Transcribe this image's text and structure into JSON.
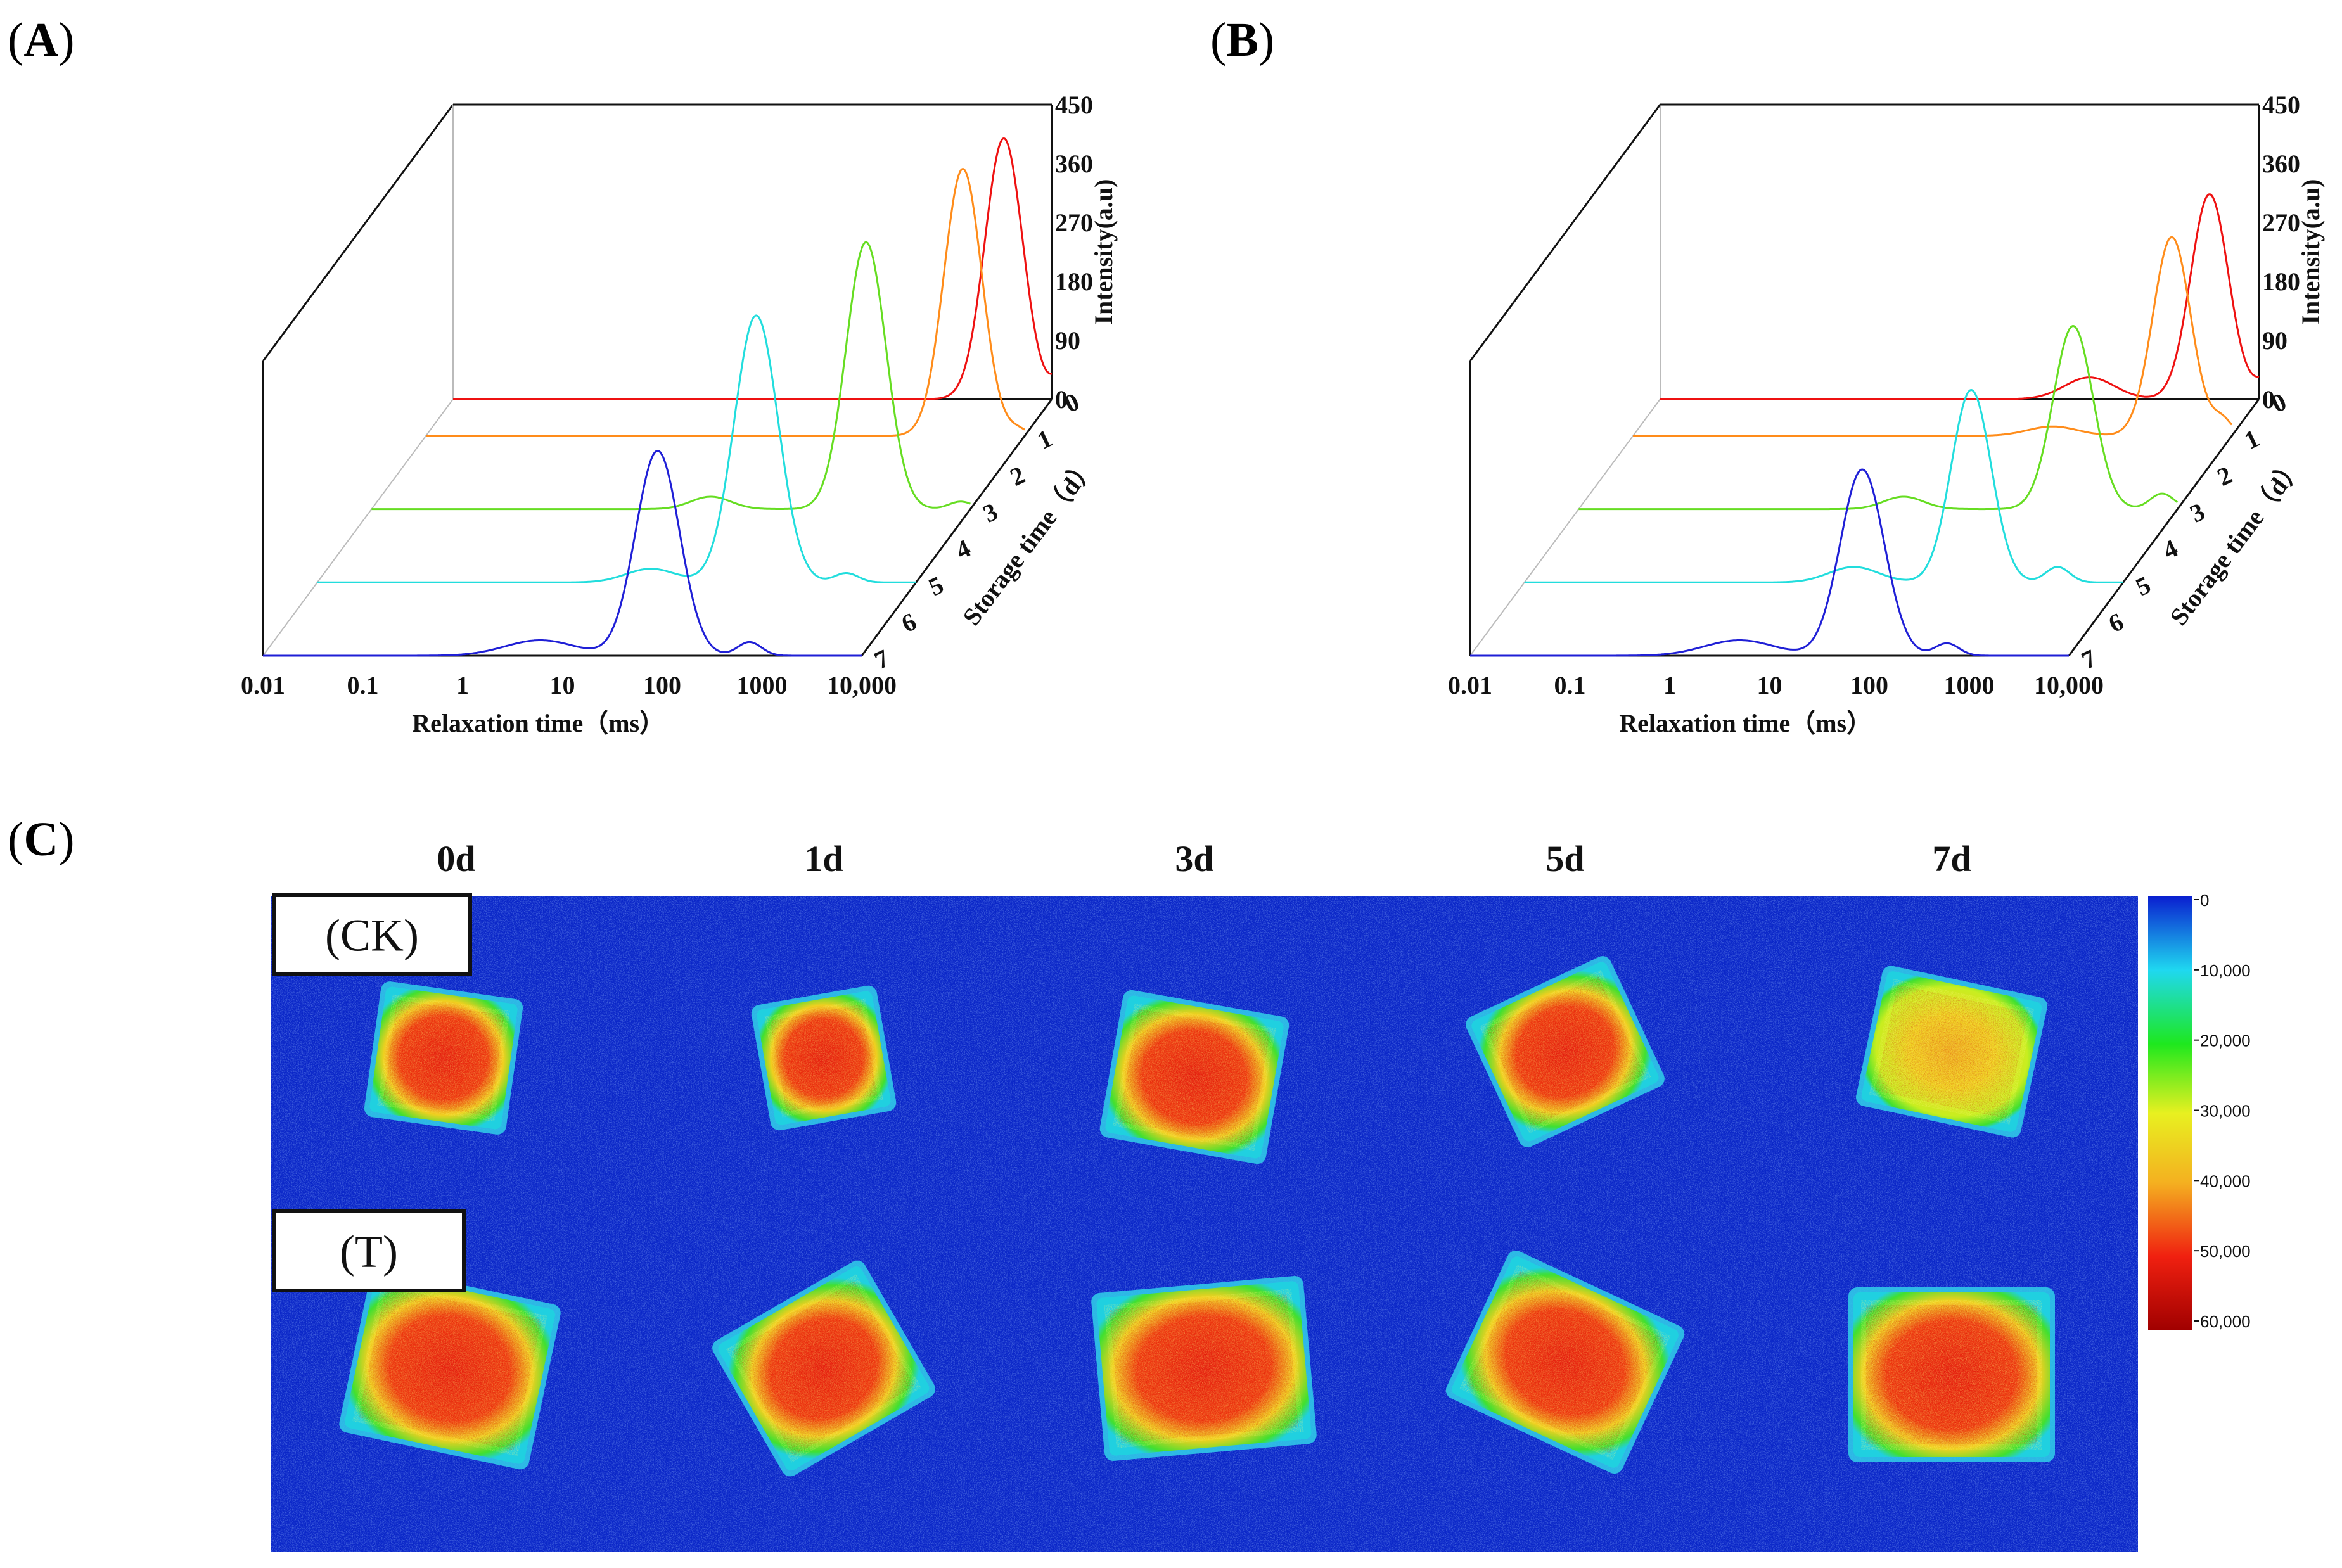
{
  "panels": {
    "A": {
      "letter": "A"
    },
    "B": {
      "letter": "B"
    },
    "C": {
      "letter": "C"
    }
  },
  "chart_data": [
    {
      "type": "line",
      "panel": "A",
      "xlabel": "Relaxation time（ms）",
      "x_scale": "log",
      "x_ticks": [
        "0.01",
        "0.1",
        "1",
        "10",
        "100",
        "1000",
        "10,000"
      ],
      "ylabel": "Intensity(a.u)",
      "ylim": [
        0,
        450
      ],
      "y_ticks": [
        "0",
        "90",
        "180",
        "270",
        "360",
        "450"
      ],
      "zlabel": "Storage time（d）",
      "z_ticks": [
        "0",
        "1",
        "2",
        "3",
        "4",
        "5",
        "6",
        "7"
      ],
      "series": [
        {
          "day": 7,
          "color": "#1f1fd6",
          "peaks": [
            [
              6,
              25,
              0.35
            ],
            [
              90,
              330,
              0.22
            ],
            [
              750,
              22,
              0.12
            ]
          ]
        },
        {
          "day": 5,
          "color": "#22dddd",
          "peaks": [
            [
              22,
              22,
              0.25
            ],
            [
              250,
              430,
              0.22
            ],
            [
              2000,
              15,
              0.12
            ]
          ]
        },
        {
          "day": 3,
          "color": "#66dd22",
          "peaks": [
            [
              25,
              20,
              0.2
            ],
            [
              900,
              430,
              0.2
            ],
            [
              8000,
              12,
              0.12
            ]
          ]
        },
        {
          "day": 1,
          "color": "#ff8c1a",
          "peaks": [
            [
              2400,
              430,
              0.19
            ],
            [
              8500,
              10,
              0.1
            ]
          ]
        },
        {
          "day": 0,
          "color": "#ee1111",
          "peaks": [
            [
              3300,
              420,
              0.19
            ],
            [
              14000,
              50,
              0.12
            ]
          ]
        }
      ]
    },
    {
      "type": "line",
      "panel": "B",
      "xlabel": "Relaxation time（ms）",
      "x_scale": "log",
      "x_ticks": [
        "0.01",
        "0.1",
        "1",
        "10",
        "100",
        "1000",
        "10,000"
      ],
      "ylabel": "Intensity(a.u)",
      "ylim": [
        0,
        450
      ],
      "y_ticks": [
        "0",
        "90",
        "180",
        "270",
        "360",
        "450"
      ],
      "zlabel": "Storage time（d）",
      "z_ticks": [
        "0",
        "1",
        "2",
        "3",
        "4",
        "5",
        "6",
        "7"
      ],
      "series": [
        {
          "day": 7,
          "color": "#1f1fd6",
          "peaks": [
            [
              5,
              25,
              0.35
            ],
            [
              85,
              300,
              0.22
            ],
            [
              600,
              20,
              0.12
            ]
          ]
        },
        {
          "day": 5,
          "color": "#22dddd",
          "peaks": [
            [
              20,
              25,
              0.25
            ],
            [
              300,
              310,
              0.2
            ],
            [
              2200,
              25,
              0.12
            ]
          ]
        },
        {
          "day": 3,
          "color": "#66dd22",
          "peaks": [
            [
              18,
              20,
              0.2
            ],
            [
              900,
              295,
              0.2
            ],
            [
              7000,
              25,
              0.12
            ]
          ]
        },
        {
          "day": 1,
          "color": "#ff8c1a",
          "peaks": [
            [
              160,
              15,
              0.25
            ],
            [
              2500,
              320,
              0.19
            ],
            [
              8000,
              25,
              0.1
            ]
          ]
        },
        {
          "day": 0,
          "color": "#ee1111",
          "peaks": [
            [
              200,
              35,
              0.25
            ],
            [
              3200,
              330,
              0.19
            ],
            [
              12000,
              30,
              0.12
            ]
          ]
        }
      ]
    },
    {
      "type": "heatmap",
      "panel": "C",
      "columns": [
        "0d",
        "1d",
        "3d",
        "5d",
        "7d"
      ],
      "rows": [
        "(CK)",
        "(T)"
      ],
      "colorbar_ticks": [
        "0",
        "10,000",
        "20,000",
        "30,000",
        "40,000",
        "50,000",
        "60,000"
      ],
      "colorbar_range": [
        0,
        60000
      ],
      "colorbar_colors": [
        "#0a1fd0",
        "#1fd8f0",
        "#1ee81e",
        "#e8f020",
        "#f4b020",
        "#f02010",
        "#a00000"
      ],
      "background_color": "#0b27c8",
      "samples": [
        {
          "row": "(CK)",
          "col": "0d",
          "center_level": 57000,
          "edge_level": 35000
        },
        {
          "row": "(CK)",
          "col": "1d",
          "center_level": 56000,
          "edge_level": 35000
        },
        {
          "row": "(CK)",
          "col": "3d",
          "center_level": 54000,
          "edge_level": 32000
        },
        {
          "row": "(CK)",
          "col": "5d",
          "center_level": 50000,
          "edge_level": 33000
        },
        {
          "row": "(CK)",
          "col": "7d",
          "center_level": 45000,
          "edge_level": 33000
        },
        {
          "row": "(T)",
          "col": "0d",
          "center_level": 57000,
          "edge_level": 33000
        },
        {
          "row": "(T)",
          "col": "1d",
          "center_level": 57000,
          "edge_level": 32000
        },
        {
          "row": "(T)",
          "col": "3d",
          "center_level": 56000,
          "edge_level": 32000
        },
        {
          "row": "(T)",
          "col": "5d",
          "center_level": 56000,
          "edge_level": 33000
        },
        {
          "row": "(T)",
          "col": "7d",
          "center_level": 55000,
          "edge_level": 28000
        }
      ]
    }
  ]
}
